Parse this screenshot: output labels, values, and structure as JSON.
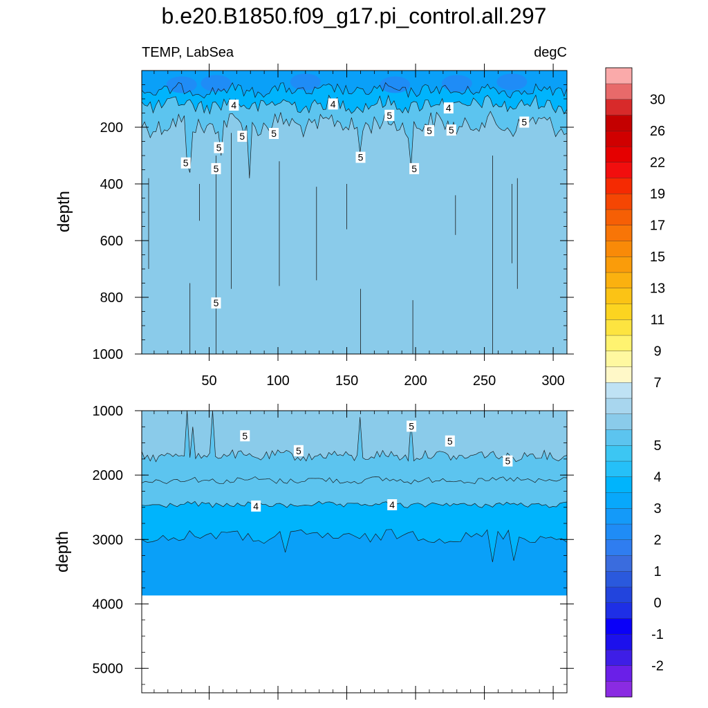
{
  "chart_data": {
    "type": "heatmap",
    "title": "b.e20.B1850.f09_g17.pi_control.all.297",
    "variable_label": "TEMP, LabSea",
    "units_label": "degC",
    "xlabel": "",
    "ylabel": "depth",
    "xlim": [
      1,
      310
    ],
    "x_ticks": [
      50,
      100,
      150,
      200,
      250,
      300
    ],
    "panels": [
      {
        "name": "upper",
        "ylim": [
          0,
          1000
        ],
        "y_ticks": [
          200,
          400,
          600,
          800,
          1000
        ],
        "y_reversed": true,
        "contour_labels": [
          {
            "text": "4",
            "x": 68,
            "y": 122
          },
          {
            "text": "4",
            "x": 140,
            "y": 118
          },
          {
            "text": "4",
            "x": 224,
            "y": 132
          },
          {
            "text": "5",
            "x": 181,
            "y": 158
          },
          {
            "text": "5",
            "x": 279,
            "y": 182
          },
          {
            "text": "5",
            "x": 74,
            "y": 232
          },
          {
            "text": "5",
            "x": 97,
            "y": 222
          },
          {
            "text": "5",
            "x": 210,
            "y": 212
          },
          {
            "text": "5",
            "x": 226,
            "y": 210
          },
          {
            "text": "5",
            "x": 57,
            "y": 272
          },
          {
            "text": "5",
            "x": 33,
            "y": 326
          },
          {
            "text": "5",
            "x": 55,
            "y": 346
          },
          {
            "text": "5",
            "x": 160,
            "y": 306
          },
          {
            "text": "5",
            "x": 199,
            "y": 346
          },
          {
            "text": "5",
            "x": 55,
            "y": 820
          }
        ]
      },
      {
        "name": "lower",
        "ylim": [
          1000,
          5380
        ],
        "y_ticks": [
          1000,
          2000,
          3000,
          4000,
          5000
        ],
        "y_reversed": true,
        "bottom_depth": 3870,
        "contour_labels": [
          {
            "text": "5",
            "x": 76,
            "y": 1390
          },
          {
            "text": "5",
            "x": 115,
            "y": 1620
          },
          {
            "text": "5",
            "x": 197,
            "y": 1240
          },
          {
            "text": "5",
            "x": 225,
            "y": 1470
          },
          {
            "text": "5",
            "x": 267,
            "y": 1780
          },
          {
            "text": "4",
            "x": 84,
            "y": 2480
          },
          {
            "text": "4",
            "x": 183,
            "y": 2460
          }
        ]
      }
    ],
    "colorbar": {
      "levels": [
        -3,
        -2.5,
        -2,
        -1.5,
        -1,
        -0.5,
        0,
        0.5,
        1,
        1.5,
        2,
        2.5,
        3,
        3.5,
        4,
        4.5,
        5,
        5.5,
        6,
        6.5,
        7,
        8,
        9,
        10,
        11,
        12,
        13,
        14,
        15,
        16,
        17,
        18,
        19,
        20,
        22,
        24,
        26,
        28,
        30,
        32,
        34
      ],
      "labels": [
        "-2",
        "-1",
        "0",
        "1",
        "2",
        "3",
        "4",
        "5",
        "7",
        "9",
        "11",
        "13",
        "15",
        "17",
        "19",
        "22",
        "26",
        "30"
      ],
      "colors": [
        "#8a2be2",
        "#6a1fe8",
        "#3e1ee6",
        "#1c10ec",
        "#0a00f8",
        "#1e2fe6",
        "#2244dd",
        "#2a59dd",
        "#3a6cde",
        "#2f7df0",
        "#1f8cf6",
        "#149af9",
        "#08a8fb",
        "#00b4fc",
        "#25c0f8",
        "#3cc6f3",
        "#5cc4ef",
        "#8acbea",
        "#a8d6ee",
        "#bfe2f4",
        "#fff8c8",
        "#fff8a0",
        "#fff370",
        "#fde440",
        "#fcd420",
        "#fbc315",
        "#fbb10f",
        "#fa9c0a",
        "#f98a08",
        "#f87507",
        "#f65f05",
        "#f54603",
        "#f52a02",
        "#f20e0e",
        "#e50000",
        "#d00000",
        "#c40000",
        "#d82a2a",
        "#e86a6a",
        "#faaaaa"
      ]
    },
    "fill_colors": {
      "below_2": "#1f8cf6",
      "2_to_3": "#0aa0f8",
      "3_to_4": "#00b4fc",
      "4_to_5": "#5cc4ef",
      "5_to_6": "#8acbea",
      "6_to_7": "#a8d6ee"
    }
  }
}
